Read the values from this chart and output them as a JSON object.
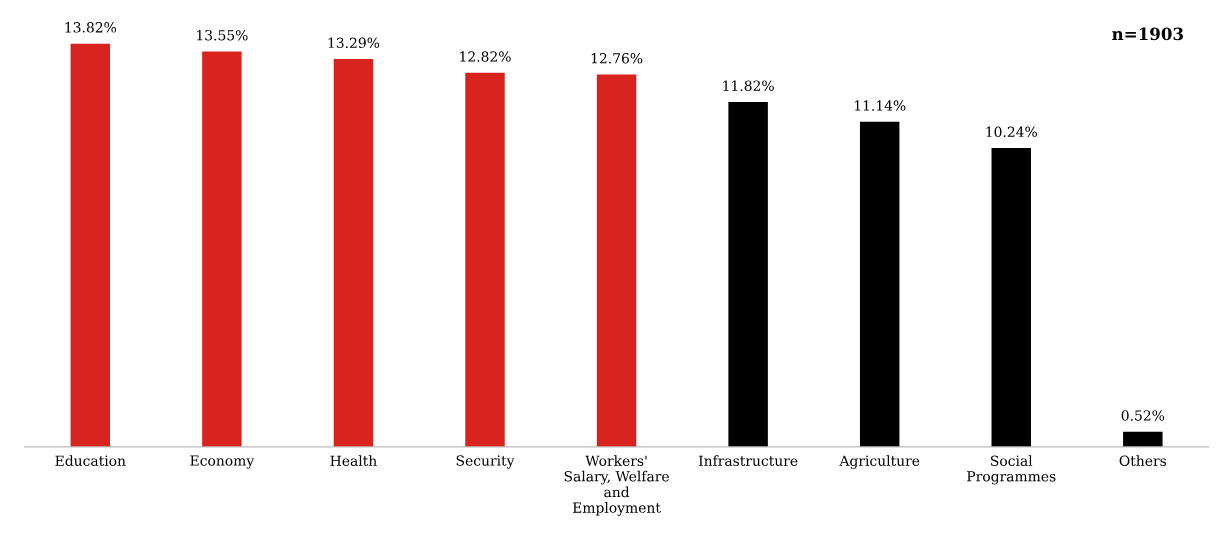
{
  "chart_data": {
    "type": "bar",
    "categories": [
      "Education",
      "Economy",
      "Health",
      "Security",
      "Workers'\nSalary, Welfare\nand\nEmployment",
      "Infrastructure",
      "Agriculture",
      "Social\nProgrammes",
      "Others"
    ],
    "values": [
      13.82,
      13.55,
      13.29,
      12.82,
      12.76,
      11.82,
      11.14,
      10.24,
      0.52
    ],
    "value_labels": [
      "13.82%",
      "13.55%",
      "13.29%",
      "12.82%",
      "12.76%",
      "11.82%",
      "11.14%",
      "10.24%",
      "0.52%"
    ],
    "colors": [
      "#d9231f",
      "#d9231f",
      "#d9231f",
      "#d9231f",
      "#d9231f",
      "#000000",
      "#000000",
      "#000000",
      "#000000"
    ],
    "annotations": [
      "n=1903"
    ],
    "grid": false,
    "legend": false
  }
}
